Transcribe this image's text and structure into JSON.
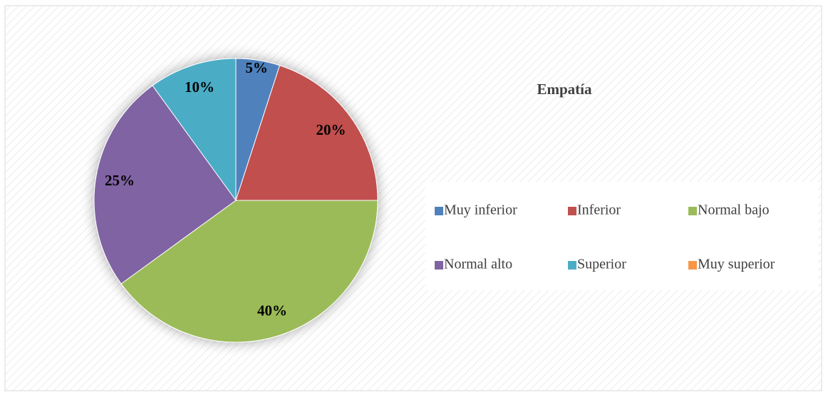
{
  "chart_data": {
    "type": "pie",
    "title": "Empatía",
    "categories": [
      "Muy inferior",
      "Inferior",
      "Normal bajo",
      "Normal alto",
      "Superior",
      "Muy superior"
    ],
    "values": [
      5,
      20,
      40,
      25,
      10,
      0
    ],
    "value_labels": [
      "5%",
      "20%",
      "40%",
      "25%",
      "10%",
      null
    ],
    "colors": [
      "#4f81bd",
      "#c0504d",
      "#9bbb59",
      "#8064a2",
      "#4bacc6",
      "#f79646"
    ],
    "legend": "right"
  }
}
